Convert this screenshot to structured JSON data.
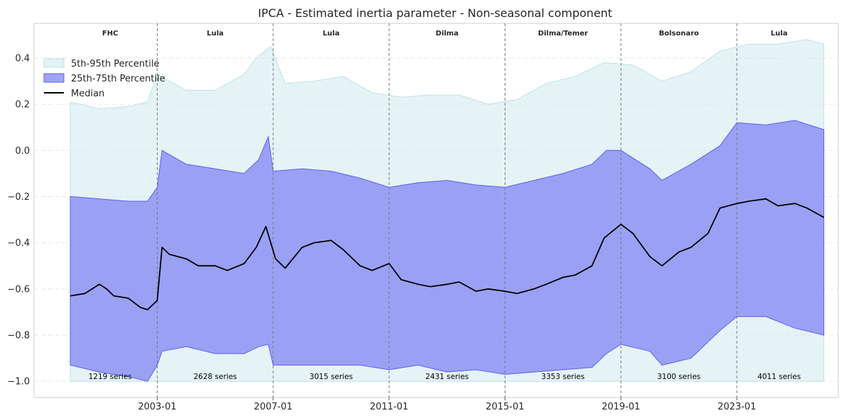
{
  "chart_data": {
    "type": "area",
    "title": "IPCA - Estimated inertia parameter - Non-seasonal component",
    "xlabel": "",
    "ylabel": "",
    "xlim": [
      "1998-10-01",
      "2026-07-01"
    ],
    "ylim": [
      -1.07,
      0.55
    ],
    "x_ticks": [
      "2003-01",
      "2007-01",
      "2011-01",
      "2015-01",
      "2019-01",
      "2023-01"
    ],
    "y_ticks": [
      0.4,
      0.2,
      0.0,
      -0.2,
      -0.4,
      -0.6,
      -0.8,
      -1.0
    ],
    "y_tick_labels": [
      "0.4",
      "0.2",
      "0.0",
      "−0.2",
      "−0.4",
      "−0.6",
      "−0.8",
      "−1.0"
    ],
    "grid": true,
    "legend_position": "upper-left",
    "colors": {
      "p5_95": "#cfeaef",
      "p25_75": "#7b7df5",
      "median": "#000000",
      "period_line": "#7a7a7a"
    },
    "series": [
      {
        "name": "5th-95th Percentile",
        "kind": "band",
        "x": [
          "2000-01",
          "2001-01",
          "2002-01",
          "2002-09",
          "2003-01",
          "2004-01",
          "2005-01",
          "2006-01",
          "2006-06",
          "2006-12",
          "2007-06",
          "2008-06",
          "2009-06",
          "2010-06",
          "2011-06",
          "2012-06",
          "2013-06",
          "2014-06",
          "2015-06",
          "2016-06",
          "2017-06",
          "2018-06",
          "2019-06",
          "2020-06",
          "2021-06",
          "2022-06",
          "2023-06",
          "2024-06",
          "2025-06",
          "2026-01"
        ],
        "lower": [
          -1.0,
          -1.0,
          -1.0,
          -1.0,
          -1.0,
          -1.0,
          -1.0,
          -1.0,
          -1.0,
          -1.0,
          -1.0,
          -1.0,
          -1.0,
          -1.0,
          -1.0,
          -1.0,
          -1.0,
          -1.0,
          -1.0,
          -1.0,
          -1.0,
          -1.0,
          -1.0,
          -1.0,
          -1.0,
          -1.0,
          -1.0,
          -1.0,
          -1.0,
          -1.0
        ],
        "upper": [
          0.21,
          0.18,
          0.19,
          0.21,
          0.33,
          0.26,
          0.26,
          0.33,
          0.4,
          0.45,
          0.29,
          0.3,
          0.32,
          0.25,
          0.23,
          0.24,
          0.24,
          0.2,
          0.22,
          0.29,
          0.32,
          0.38,
          0.37,
          0.3,
          0.34,
          0.43,
          0.46,
          0.46,
          0.48,
          0.46
        ]
      },
      {
        "name": "25th-75th Percentile",
        "kind": "band",
        "x": [
          "2000-01",
          "2001-01",
          "2002-01",
          "2002-09",
          "2003-01",
          "2003-03",
          "2004-01",
          "2005-01",
          "2006-01",
          "2006-07",
          "2006-11",
          "2007-01",
          "2008-01",
          "2009-01",
          "2010-01",
          "2011-01",
          "2012-01",
          "2013-01",
          "2014-01",
          "2015-01",
          "2016-01",
          "2017-01",
          "2018-01",
          "2018-07",
          "2019-01",
          "2020-01",
          "2020-06",
          "2021-06",
          "2022-06",
          "2023-01",
          "2024-01",
          "2025-01",
          "2026-01"
        ],
        "lower": [
          -0.93,
          -0.96,
          -0.98,
          -1.0,
          -0.93,
          -0.87,
          -0.85,
          -0.88,
          -0.88,
          -0.85,
          -0.84,
          -0.93,
          -0.93,
          -0.93,
          -0.93,
          -0.95,
          -0.93,
          -0.96,
          -0.95,
          -0.97,
          -0.96,
          -0.95,
          -0.94,
          -0.88,
          -0.84,
          -0.87,
          -0.93,
          -0.9,
          -0.78,
          -0.72,
          -0.72,
          -0.77,
          -0.8
        ],
        "upper": [
          -0.2,
          -0.21,
          -0.22,
          -0.22,
          -0.16,
          0.0,
          -0.06,
          -0.08,
          -0.1,
          -0.04,
          0.06,
          -0.09,
          -0.08,
          -0.09,
          -0.12,
          -0.16,
          -0.14,
          -0.13,
          -0.15,
          -0.16,
          -0.13,
          -0.1,
          -0.06,
          0.0,
          0.0,
          -0.08,
          -0.13,
          -0.06,
          0.02,
          0.12,
          0.11,
          0.13,
          0.09
        ]
      },
      {
        "name": "Median",
        "kind": "line",
        "x": [
          "2000-01",
          "2000-07",
          "2001-01",
          "2001-04",
          "2001-07",
          "2002-01",
          "2002-06",
          "2002-09",
          "2003-01",
          "2003-03",
          "2003-06",
          "2004-01",
          "2004-06",
          "2005-01",
          "2005-06",
          "2006-01",
          "2006-06",
          "2006-10",
          "2007-02",
          "2007-06",
          "2008-01",
          "2008-06",
          "2009-01",
          "2009-06",
          "2010-01",
          "2010-06",
          "2011-01",
          "2011-06",
          "2012-01",
          "2012-06",
          "2013-01",
          "2013-06",
          "2014-01",
          "2014-06",
          "2015-01",
          "2015-06",
          "2016-01",
          "2016-06",
          "2017-01",
          "2017-06",
          "2018-01",
          "2018-06",
          "2019-01",
          "2019-06",
          "2020-01",
          "2020-06",
          "2021-01",
          "2021-06",
          "2022-01",
          "2022-06",
          "2023-01",
          "2023-06",
          "2024-01",
          "2024-06",
          "2025-01",
          "2025-06",
          "2026-01"
        ],
        "values": [
          -0.63,
          -0.62,
          -0.58,
          -0.6,
          -0.63,
          -0.64,
          -0.68,
          -0.69,
          -0.65,
          -0.42,
          -0.45,
          -0.47,
          -0.5,
          -0.5,
          -0.52,
          -0.49,
          -0.42,
          -0.33,
          -0.47,
          -0.51,
          -0.42,
          -0.4,
          -0.39,
          -0.43,
          -0.5,
          -0.52,
          -0.49,
          -0.56,
          -0.58,
          -0.59,
          -0.58,
          -0.57,
          -0.61,
          -0.6,
          -0.61,
          -0.62,
          -0.6,
          -0.58,
          -0.55,
          -0.54,
          -0.5,
          -0.38,
          -0.32,
          -0.36,
          -0.46,
          -0.5,
          -0.44,
          -0.42,
          -0.36,
          -0.25,
          -0.23,
          -0.22,
          -0.21,
          -0.24,
          -0.23,
          -0.25,
          -0.29
        ]
      }
    ],
    "periods": [
      {
        "label": "FHC",
        "start": "1999-10",
        "end": "2003-01",
        "count": "1219 series"
      },
      {
        "label": "Lula",
        "start": "2003-01",
        "end": "2007-01",
        "count": "2628 series"
      },
      {
        "label": "Lula",
        "start": "2007-01",
        "end": "2011-01",
        "count": "3015 series"
      },
      {
        "label": "Dilma",
        "start": "2011-01",
        "end": "2015-01",
        "count": "2431 series"
      },
      {
        "label": "Dilma/Temer",
        "start": "2015-01",
        "end": "2019-01",
        "count": "3353 series"
      },
      {
        "label": "Bolsonaro",
        "start": "2019-01",
        "end": "2023-01",
        "count": "3100 series"
      },
      {
        "label": "Lula",
        "start": "2023-01",
        "end": "2025-12",
        "count": "4011 series"
      }
    ]
  }
}
